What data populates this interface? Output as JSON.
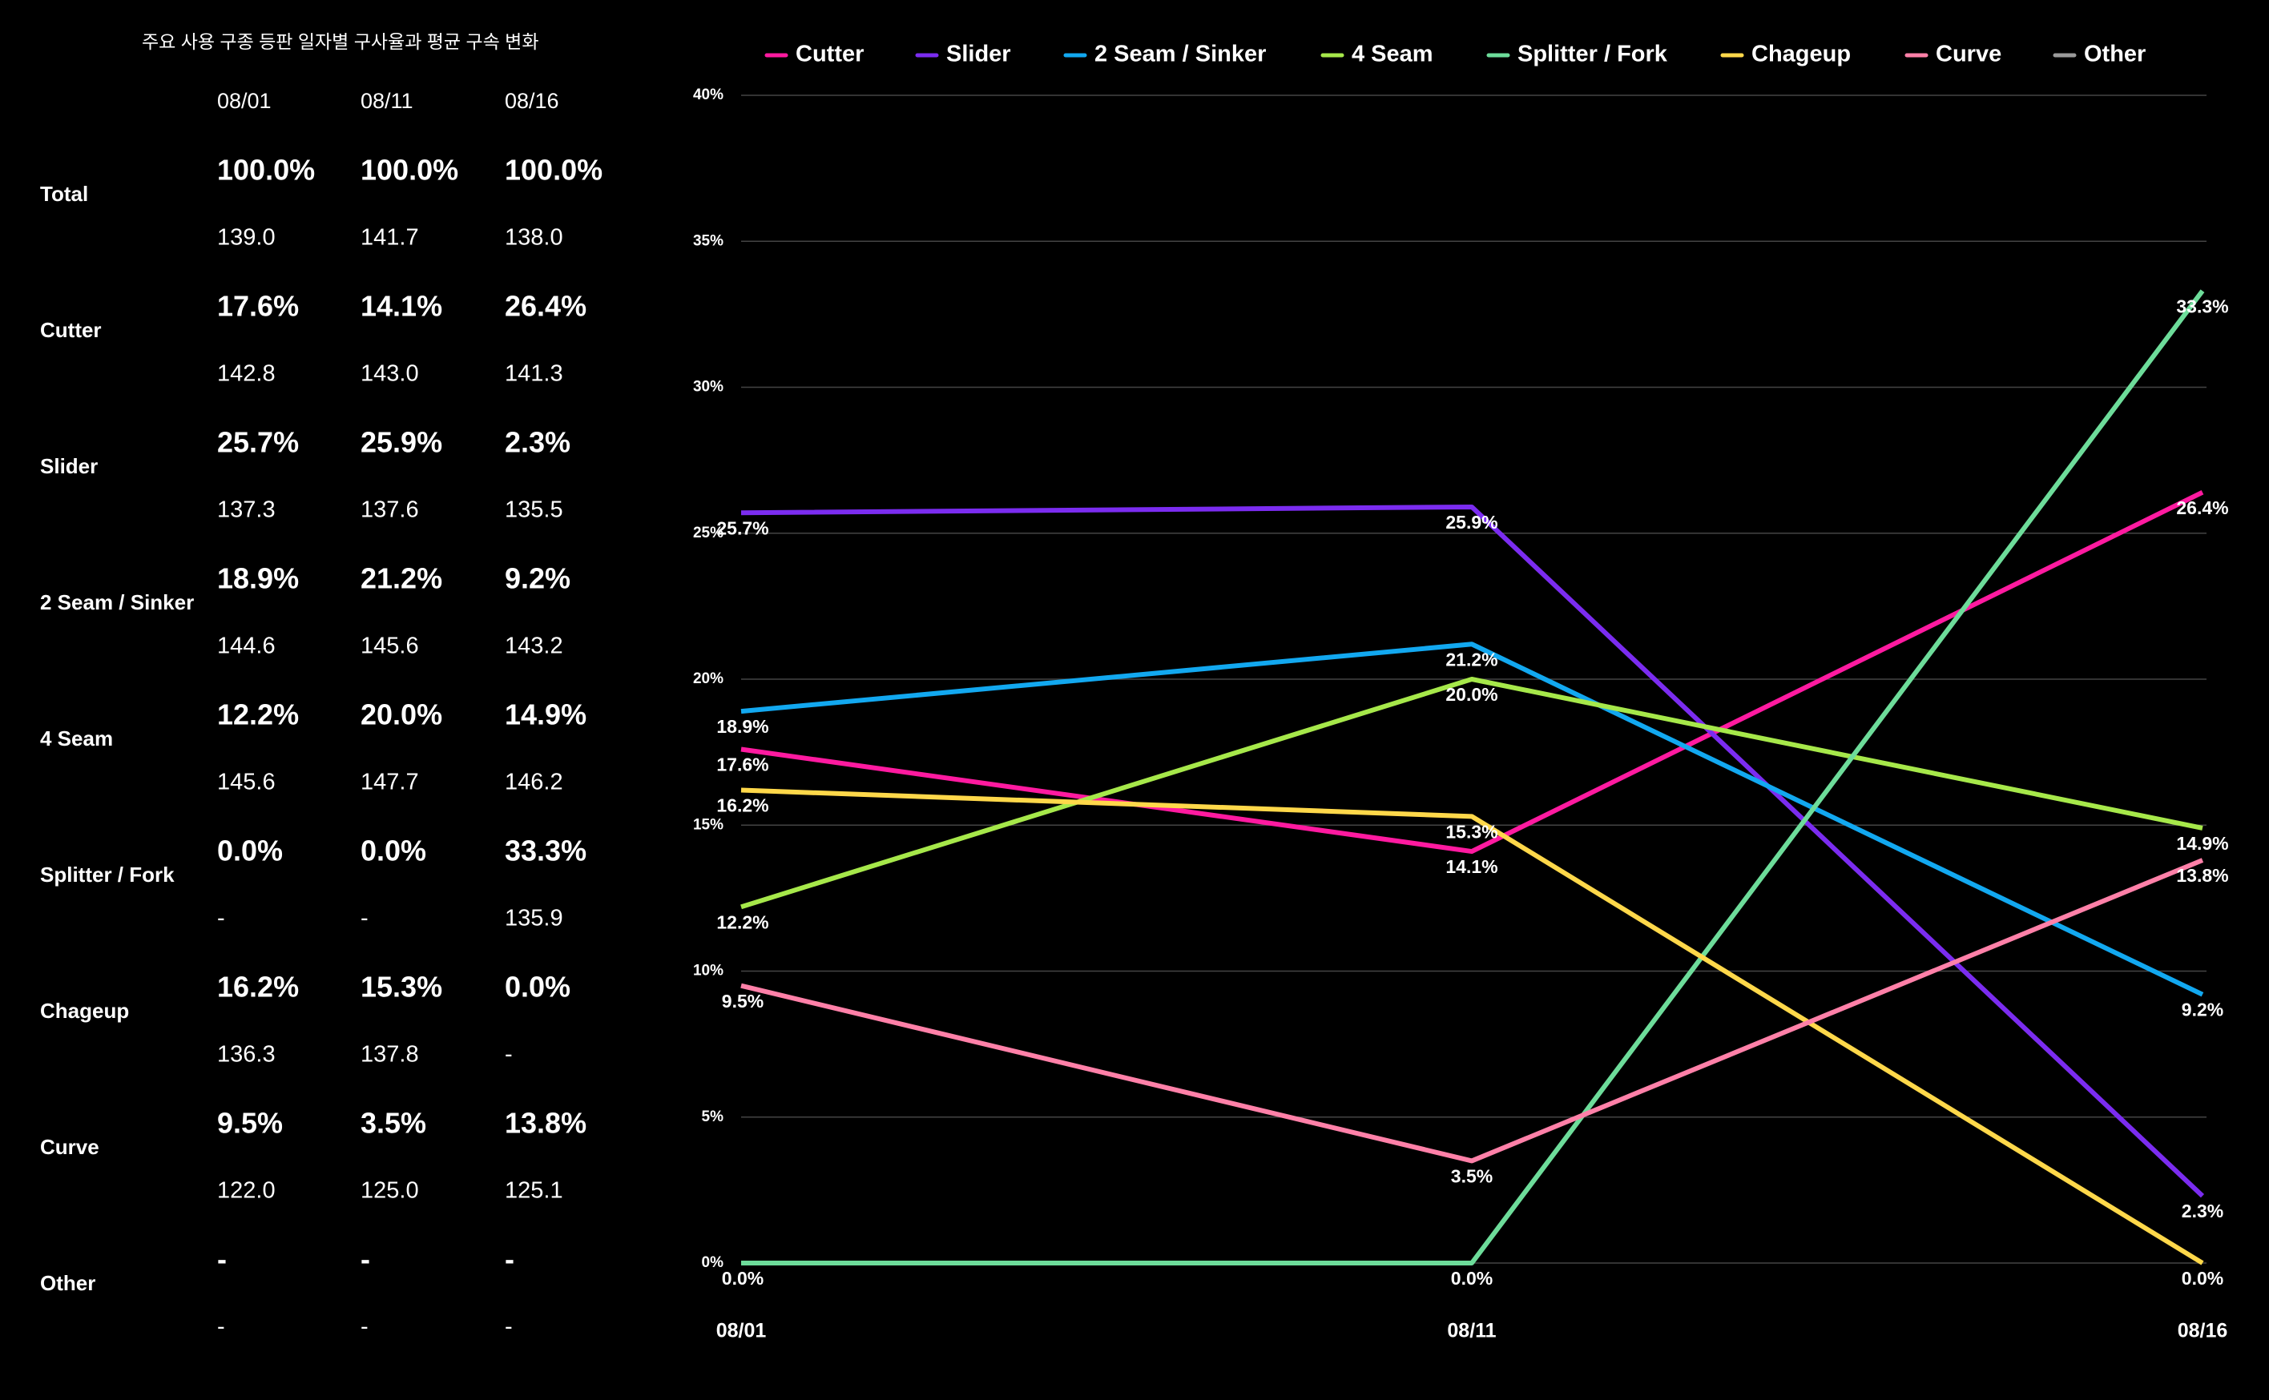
{
  "table": {
    "title": "주요 사용 구종 등판 일자별 구사율과 평균 구속 변화",
    "dates": [
      "08/01",
      "08/11",
      "08/16"
    ],
    "rows": [
      {
        "name": "Total",
        "shares": [
          "100.0%",
          "100.0%",
          "100.0%"
        ],
        "speeds": [
          "139.0",
          "141.7",
          "138.0"
        ]
      },
      {
        "name": "Cutter",
        "shares": [
          "17.6%",
          "14.1%",
          "26.4%"
        ],
        "speeds": [
          "142.8",
          "143.0",
          "141.3"
        ]
      },
      {
        "name": "Slider",
        "shares": [
          "25.7%",
          "25.9%",
          "2.3%"
        ],
        "speeds": [
          "137.3",
          "137.6",
          "135.5"
        ]
      },
      {
        "name": "2 Seam / Sinker",
        "shares": [
          "18.9%",
          "21.2%",
          "9.2%"
        ],
        "speeds": [
          "144.6",
          "145.6",
          "143.2"
        ]
      },
      {
        "name": "4 Seam",
        "shares": [
          "12.2%",
          "20.0%",
          "14.9%"
        ],
        "speeds": [
          "145.6",
          "147.7",
          "146.2"
        ]
      },
      {
        "name": "Splitter / Fork",
        "shares": [
          "0.0%",
          "0.0%",
          "33.3%"
        ],
        "speeds": [
          "-",
          "-",
          "135.9"
        ]
      },
      {
        "name": "Chageup",
        "shares": [
          "16.2%",
          "15.3%",
          "0.0%"
        ],
        "speeds": [
          "136.3",
          "137.8",
          "-"
        ]
      },
      {
        "name": "Curve",
        "shares": [
          "9.5%",
          "3.5%",
          "13.8%"
        ],
        "speeds": [
          "122.0",
          "125.0",
          "125.1"
        ]
      },
      {
        "name": "Other",
        "shares": [
          "-",
          "-",
          "-"
        ],
        "speeds": [
          "-",
          "-",
          "-"
        ]
      }
    ]
  },
  "chart_data": {
    "type": "line",
    "categories": [
      "08/01",
      "08/11",
      "08/16"
    ],
    "ylim": [
      0,
      40
    ],
    "yticks": [
      {
        "value": 0,
        "label": "0%"
      },
      {
        "value": 5,
        "label": "5%"
      },
      {
        "value": 10,
        "label": "10%"
      },
      {
        "value": 15,
        "label": "15%"
      },
      {
        "value": 20,
        "label": "20%"
      },
      {
        "value": 25,
        "label": "25%"
      },
      {
        "value": 30,
        "label": "30%"
      },
      {
        "value": 35,
        "label": "35%"
      },
      {
        "value": 40,
        "label": "40%"
      }
    ],
    "grid": true,
    "legend": "top",
    "series": [
      {
        "name": "Cutter",
        "color": "#ff1aa0",
        "values": [
          17.6,
          14.1,
          26.4
        ],
        "value_labels": [
          "17.6%",
          "14.1%",
          "26.4%"
        ]
      },
      {
        "name": "Slider",
        "color": "#7b2cf0",
        "values": [
          25.7,
          25.9,
          2.3
        ],
        "value_labels": [
          "25.7%",
          "25.9%",
          "2.3%"
        ]
      },
      {
        "name": "2 Seam / Sinker",
        "color": "#12a8f0",
        "values": [
          18.9,
          21.2,
          9.2
        ],
        "value_labels": [
          "18.9%",
          "21.2%",
          "9.2%"
        ]
      },
      {
        "name": "4 Seam",
        "color": "#a6e84a",
        "values": [
          12.2,
          20.0,
          14.9
        ],
        "value_labels": [
          "12.2%",
          "20.0%",
          "14.9%"
        ]
      },
      {
        "name": "Splitter / Fork",
        "color": "#6ddc9a",
        "values": [
          0.0,
          0.0,
          33.3
        ],
        "value_labels": [
          "0.0%",
          "0.0%",
          "33.3%"
        ]
      },
      {
        "name": "Chageup",
        "color": "#ffd84a",
        "values": [
          16.2,
          15.3,
          0.0
        ],
        "value_labels": [
          "16.2%",
          "15.3%",
          "0.0%"
        ]
      },
      {
        "name": "Curve",
        "color": "#ff80a8",
        "values": [
          9.5,
          3.5,
          13.8
        ],
        "value_labels": [
          "9.5%",
          "3.5%",
          "13.8%"
        ]
      },
      {
        "name": "Other",
        "color": "#9a9a9a",
        "values": [
          null,
          null,
          null
        ]
      }
    ]
  }
}
